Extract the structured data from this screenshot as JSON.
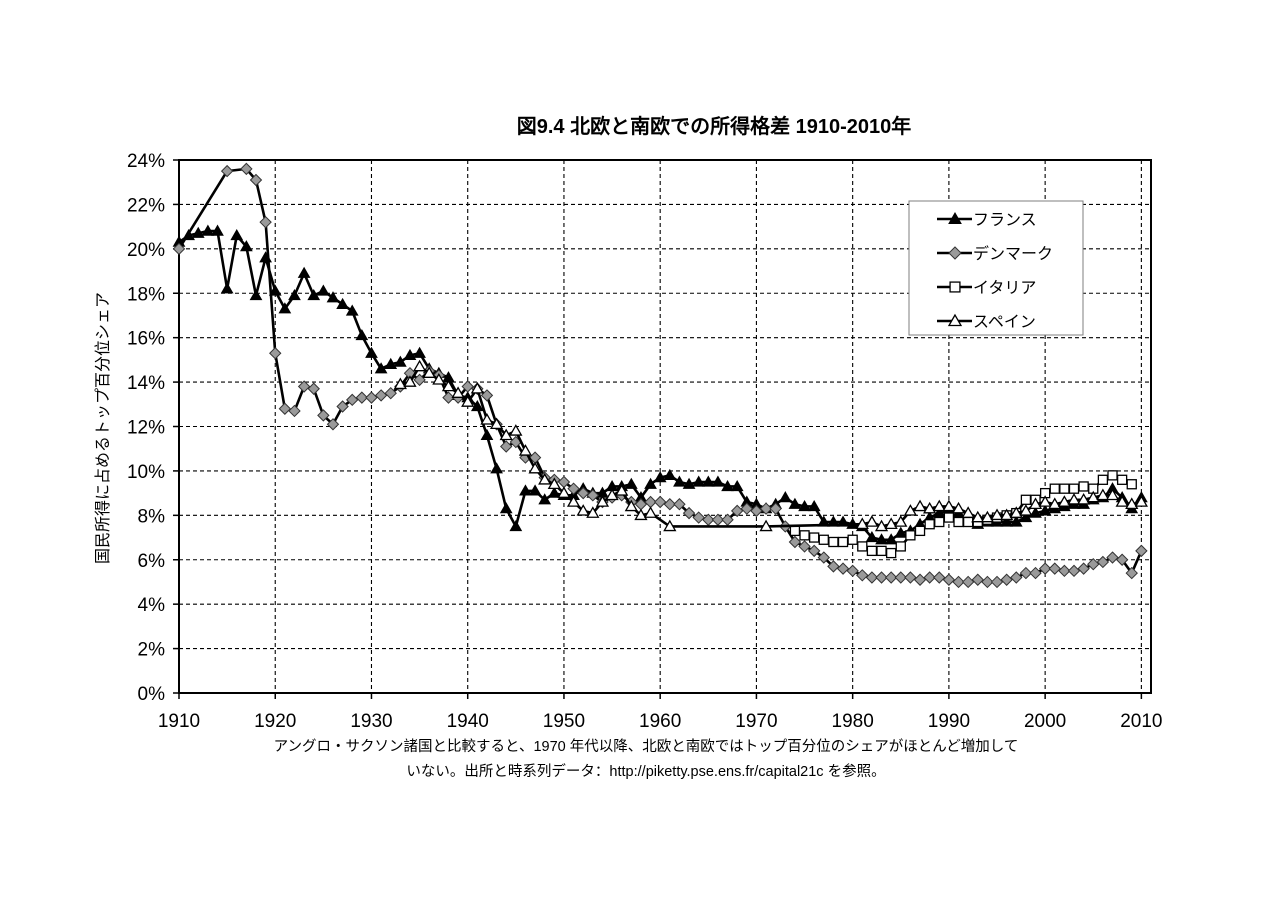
{
  "chart_data": {
    "type": "line",
    "title": "図9.4 北欧と南欧での所得格差 1910-2010年",
    "xlabel": "",
    "ylabel": "国民所得に占めるトップ百分位シェア",
    "xlim": [
      1910,
      2011
    ],
    "ylim": [
      0,
      24
    ],
    "x_ticks": [
      1910,
      1920,
      1930,
      1940,
      1950,
      1960,
      1970,
      1980,
      1990,
      2000,
      2010
    ],
    "y_ticks": [
      0,
      2,
      4,
      6,
      8,
      10,
      12,
      14,
      16,
      18,
      20,
      22,
      24
    ],
    "y_tick_labels": [
      "0%",
      "2%",
      "4%",
      "6%",
      "8%",
      "10%",
      "12%",
      "14%",
      "16%",
      "18%",
      "20%",
      "22%",
      "24%"
    ],
    "grid": true,
    "legend_position": "top-right",
    "series": [
      {
        "name": "フランス",
        "marker": "filled-triangle",
        "color": "#000000",
        "points": [
          [
            1910,
            20.3
          ],
          [
            1911,
            20.6
          ],
          [
            1912,
            20.7
          ],
          [
            1913,
            20.8
          ],
          [
            1914,
            20.8
          ],
          [
            1915,
            18.2
          ],
          [
            1916,
            20.6
          ],
          [
            1917,
            20.1
          ],
          [
            1918,
            17.9
          ],
          [
            1919,
            19.6
          ],
          [
            1920,
            18.1
          ],
          [
            1921,
            17.3
          ],
          [
            1922,
            17.9
          ],
          [
            1923,
            18.9
          ],
          [
            1924,
            17.9
          ],
          [
            1925,
            18.1
          ],
          [
            1926,
            17.8
          ],
          [
            1927,
            17.5
          ],
          [
            1928,
            17.2
          ],
          [
            1929,
            16.1
          ],
          [
            1930,
            15.3
          ],
          [
            1931,
            14.6
          ],
          [
            1932,
            14.8
          ],
          [
            1933,
            14.9
          ],
          [
            1934,
            15.2
          ],
          [
            1935,
            15.3
          ],
          [
            1936,
            14.6
          ],
          [
            1937,
            14.4
          ],
          [
            1938,
            14.2
          ],
          [
            1939,
            13.4
          ],
          [
            1940,
            13.3
          ],
          [
            1941,
            12.9
          ],
          [
            1942,
            11.6
          ],
          [
            1943,
            10.1
          ],
          [
            1944,
            8.3
          ],
          [
            1945,
            7.5
          ],
          [
            1946,
            9.1
          ],
          [
            1947,
            9.1
          ],
          [
            1948,
            8.7
          ],
          [
            1949,
            9.0
          ],
          [
            1950,
            8.9
          ],
          [
            1951,
            8.9
          ],
          [
            1952,
            9.2
          ],
          [
            1953,
            9.0
          ],
          [
            1954,
            9.0
          ],
          [
            1955,
            9.3
          ],
          [
            1956,
            9.3
          ],
          [
            1957,
            9.4
          ],
          [
            1958,
            8.8
          ],
          [
            1959,
            9.4
          ],
          [
            1960,
            9.7
          ],
          [
            1961,
            9.8
          ],
          [
            1962,
            9.5
          ],
          [
            1963,
            9.4
          ],
          [
            1964,
            9.5
          ],
          [
            1965,
            9.5
          ],
          [
            1966,
            9.5
          ],
          [
            1967,
            9.3
          ],
          [
            1968,
            9.3
          ],
          [
            1969,
            8.6
          ],
          [
            1970,
            8.5
          ],
          [
            1971,
            8.3
          ],
          [
            1972,
            8.5
          ],
          [
            1973,
            8.8
          ],
          [
            1974,
            8.5
          ],
          [
            1975,
            8.4
          ],
          [
            1976,
            8.4
          ],
          [
            1977,
            7.7
          ],
          [
            1978,
            7.7
          ],
          [
            1979,
            7.7
          ],
          [
            1980,
            7.6
          ],
          [
            1981,
            7.5
          ],
          [
            1982,
            7.0
          ],
          [
            1983,
            6.9
          ],
          [
            1984,
            6.9
          ],
          [
            1985,
            7.2
          ],
          [
            1986,
            7.3
          ],
          [
            1987,
            7.6
          ],
          [
            1988,
            7.9
          ],
          [
            1989,
            8.1
          ],
          [
            1990,
            8.2
          ],
          [
            1991,
            8.1
          ],
          [
            1992,
            7.8
          ],
          [
            1993,
            7.6
          ],
          [
            1994,
            7.7
          ],
          [
            1995,
            7.7
          ],
          [
            1996,
            7.7
          ],
          [
            1997,
            7.7
          ],
          [
            1998,
            7.9
          ],
          [
            1999,
            8.1
          ],
          [
            2000,
            8.2
          ],
          [
            2001,
            8.3
          ],
          [
            2002,
            8.4
          ],
          [
            2003,
            8.5
          ],
          [
            2004,
            8.5
          ],
          [
            2005,
            8.7
          ],
          [
            2006,
            8.8
          ],
          [
            2007,
            9.2
          ],
          [
            2008,
            8.8
          ],
          [
            2009,
            8.3
          ],
          [
            2010,
            8.8
          ]
        ]
      },
      {
        "name": "デンマーク",
        "marker": "gray-diamond",
        "color": "#909090",
        "points": [
          [
            1910,
            20.0
          ],
          [
            1915,
            23.5
          ],
          [
            1917,
            23.6
          ],
          [
            1918,
            23.1
          ],
          [
            1919,
            21.2
          ],
          [
            1920,
            15.3
          ],
          [
            1921,
            12.8
          ],
          [
            1922,
            12.7
          ],
          [
            1923,
            13.8
          ],
          [
            1924,
            13.7
          ],
          [
            1925,
            12.5
          ],
          [
            1926,
            12.1
          ],
          [
            1927,
            12.9
          ],
          [
            1928,
            13.2
          ],
          [
            1929,
            13.3
          ],
          [
            1930,
            13.3
          ],
          [
            1931,
            13.4
          ],
          [
            1932,
            13.5
          ],
          [
            1933,
            13.8
          ],
          [
            1934,
            14.4
          ],
          [
            1935,
            14.1
          ],
          [
            1936,
            14.5
          ],
          [
            1937,
            14.3
          ],
          [
            1938,
            13.3
          ],
          [
            1939,
            13.3
          ],
          [
            1940,
            13.8
          ],
          [
            1941,
            13.7
          ],
          [
            1942,
            13.4
          ],
          [
            1943,
            12.1
          ],
          [
            1944,
            11.1
          ],
          [
            1945,
            11.3
          ],
          [
            1946,
            10.6
          ],
          [
            1947,
            10.6
          ],
          [
            1948,
            9.7
          ],
          [
            1949,
            9.6
          ],
          [
            1950,
            9.5
          ],
          [
            1951,
            9.2
          ],
          [
            1952,
            9.0
          ],
          [
            1953,
            8.9
          ],
          [
            1954,
            8.6
          ],
          [
            1955,
            8.8
          ],
          [
            1956,
            8.9
          ],
          [
            1957,
            8.6
          ],
          [
            1958,
            8.5
          ],
          [
            1959,
            8.6
          ],
          [
            1960,
            8.6
          ],
          [
            1961,
            8.5
          ],
          [
            1962,
            8.5
          ],
          [
            1963,
            8.1
          ],
          [
            1964,
            7.9
          ],
          [
            1965,
            7.8
          ],
          [
            1966,
            7.8
          ],
          [
            1967,
            7.8
          ],
          [
            1968,
            8.2
          ],
          [
            1969,
            8.3
          ],
          [
            1970,
            8.2
          ],
          [
            1971,
            8.3
          ],
          [
            1972,
            8.3
          ],
          [
            1973,
            7.5
          ],
          [
            1974,
            6.8
          ],
          [
            1975,
            6.6
          ],
          [
            1976,
            6.4
          ],
          [
            1977,
            6.1
          ],
          [
            1978,
            5.7
          ],
          [
            1979,
            5.6
          ],
          [
            1980,
            5.5
          ],
          [
            1981,
            5.3
          ],
          [
            1982,
            5.2
          ],
          [
            1983,
            5.2
          ],
          [
            1984,
            5.2
          ],
          [
            1985,
            5.2
          ],
          [
            1986,
            5.2
          ],
          [
            1987,
            5.1
          ],
          [
            1988,
            5.2
          ],
          [
            1989,
            5.2
          ],
          [
            1990,
            5.1
          ],
          [
            1991,
            5.0
          ],
          [
            1992,
            5.0
          ],
          [
            1993,
            5.1
          ],
          [
            1994,
            5.0
          ],
          [
            1995,
            5.0
          ],
          [
            1996,
            5.1
          ],
          [
            1997,
            5.2
          ],
          [
            1998,
            5.4
          ],
          [
            1999,
            5.4
          ],
          [
            2000,
            5.6
          ],
          [
            2001,
            5.6
          ],
          [
            2002,
            5.5
          ],
          [
            2003,
            5.5
          ],
          [
            2004,
            5.6
          ],
          [
            2005,
            5.8
          ],
          [
            2006,
            5.9
          ],
          [
            2007,
            6.1
          ],
          [
            2008,
            6.0
          ],
          [
            2009,
            5.4
          ],
          [
            2010,
            6.4
          ]
        ]
      },
      {
        "name": "イタリア",
        "marker": "open-square",
        "color": "#000000",
        "points": [
          [
            1974,
            7.3
          ],
          [
            1975,
            7.1
          ],
          [
            1976,
            7.0
          ],
          [
            1977,
            6.9
          ],
          [
            1978,
            6.8
          ],
          [
            1979,
            6.8
          ],
          [
            1980,
            6.9
          ],
          [
            1981,
            6.6
          ],
          [
            1982,
            6.4
          ],
          [
            1983,
            6.4
          ],
          [
            1984,
            6.3
          ],
          [
            1985,
            6.6
          ],
          [
            1986,
            7.1
          ],
          [
            1987,
            7.3
          ],
          [
            1988,
            7.6
          ],
          [
            1989,
            7.7
          ],
          [
            1990,
            7.9
          ],
          [
            1991,
            7.7
          ],
          [
            1992,
            7.7
          ],
          [
            1993,
            7.7
          ],
          [
            1994,
            7.8
          ],
          [
            1995,
            7.9
          ],
          [
            1996,
            8.0
          ],
          [
            1997,
            8.1
          ],
          [
            1998,
            8.7
          ],
          [
            1999,
            8.7
          ],
          [
            2000,
            9.0
          ],
          [
            2001,
            9.2
          ],
          [
            2002,
            9.2
          ],
          [
            2003,
            9.2
          ],
          [
            2004,
            9.3
          ],
          [
            2005,
            9.2
          ],
          [
            2006,
            9.6
          ],
          [
            2007,
            9.8
          ],
          [
            2008,
            9.6
          ],
          [
            2009,
            9.4
          ]
        ]
      },
      {
        "name": "スペイン",
        "marker": "open-triangle",
        "color": "#000000",
        "points": [
          [
            1933,
            13.9
          ],
          [
            1934,
            14.0
          ],
          [
            1935,
            14.7
          ],
          [
            1936,
            14.4
          ],
          [
            1937,
            14.1
          ],
          [
            1938,
            13.8
          ],
          [
            1939,
            13.5
          ],
          [
            1940,
            13.1
          ],
          [
            1941,
            13.7
          ],
          [
            1942,
            12.3
          ],
          [
            1943,
            12.1
          ],
          [
            1944,
            11.6
          ],
          [
            1945,
            11.8
          ],
          [
            1946,
            10.9
          ],
          [
            1947,
            10.1
          ],
          [
            1948,
            9.6
          ],
          [
            1949,
            9.4
          ],
          [
            1950,
            9.0
          ],
          [
            1951,
            8.6
          ],
          [
            1952,
            8.2
          ],
          [
            1953,
            8.1
          ],
          [
            1954,
            8.6
          ],
          [
            1955,
            8.9
          ],
          [
            1956,
            9.1
          ],
          [
            1957,
            8.4
          ],
          [
            1958,
            8.0
          ],
          [
            1959,
            8.1
          ],
          [
            1961,
            7.5
          ],
          [
            1971,
            7.5
          ],
          [
            1981,
            7.6
          ],
          [
            1982,
            7.7
          ],
          [
            1983,
            7.5
          ],
          [
            1984,
            7.6
          ],
          [
            1985,
            7.7
          ],
          [
            1986,
            8.2
          ],
          [
            1987,
            8.4
          ],
          [
            1988,
            8.3
          ],
          [
            1989,
            8.4
          ],
          [
            1990,
            8.4
          ],
          [
            1991,
            8.3
          ],
          [
            1992,
            8.1
          ],
          [
            1993,
            7.9
          ],
          [
            1994,
            7.9
          ],
          [
            1995,
            8.0
          ],
          [
            1996,
            8.0
          ],
          [
            1997,
            8.1
          ],
          [
            1998,
            8.2
          ],
          [
            1999,
            8.5
          ],
          [
            2000,
            8.6
          ],
          [
            2001,
            8.5
          ],
          [
            2002,
            8.6
          ],
          [
            2003,
            8.7
          ],
          [
            2004,
            8.7
          ],
          [
            2005,
            8.8
          ],
          [
            2006,
            8.9
          ],
          [
            2007,
            8.9
          ],
          [
            2008,
            8.6
          ],
          [
            2009,
            8.5
          ],
          [
            2010,
            8.6
          ]
        ]
      }
    ],
    "caption": [
      "アングロ・サクソン諸国と比較すると、1970 年代以降、北欧と南欧ではトップ百分位のシェアがほとんど増加して",
      "いない。出所と時系列データ：http://piketty.pse.ens.fr/capital21c を参照。"
    ]
  }
}
